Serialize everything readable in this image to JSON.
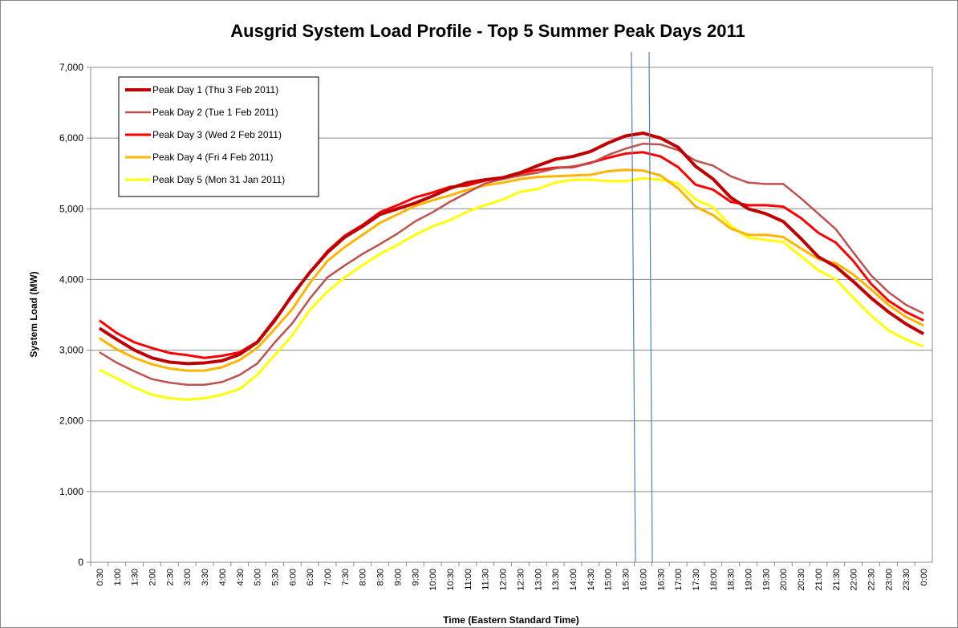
{
  "chart_data": {
    "type": "line",
    "title": "Ausgrid System Load Profile - Top 5 Summer Peak Days 2011",
    "x_label": "Time (Eastern Standard Time)",
    "y_label": "System Load (MW)",
    "categories": [
      "0:30",
      "1:00",
      "1:30",
      "2:00",
      "2:30",
      "3:00",
      "3:30",
      "4:00",
      "4:30",
      "5:00",
      "5:30",
      "6:00",
      "6:30",
      "7:00",
      "7:30",
      "8:00",
      "8:30",
      "9:00",
      "9:30",
      "10:00",
      "10:30",
      "11:00",
      "11:30",
      "12:00",
      "12:30",
      "13:00",
      "13:30",
      "14:00",
      "14:30",
      "15:00",
      "15:30",
      "16:00",
      "16:30",
      "17:00",
      "17:30",
      "18:00",
      "18:30",
      "19:00",
      "19:30",
      "20:00",
      "20:30",
      "21:00",
      "21:30",
      "22:00",
      "22:30",
      "23:00",
      "23:30",
      "0:00"
    ],
    "series": [
      {
        "name": "Peak Day 1 (Thu 3 Feb 2011)",
        "color": "#c00000",
        "values": [
          3310,
          3150,
          3000,
          2890,
          2830,
          2810,
          2820,
          2850,
          2940,
          3110,
          3420,
          3780,
          4100,
          4380,
          4600,
          4750,
          4920,
          5000,
          5080,
          5180,
          5290,
          5370,
          5410,
          5440,
          5510,
          5610,
          5700,
          5740,
          5810,
          5930,
          6030,
          6070,
          6000,
          5870,
          5600,
          5420,
          5160,
          5000,
          4930,
          4820,
          4580,
          4320,
          4180,
          3970,
          3740,
          3540,
          3370,
          3230
        ]
      },
      {
        "name": "Peak Day 2 (Tue 1 Feb 2011)",
        "color": "#c0504d",
        "values": [
          2970,
          2820,
          2700,
          2590,
          2540,
          2510,
          2510,
          2550,
          2650,
          2810,
          3110,
          3380,
          3730,
          4030,
          4200,
          4360,
          4500,
          4650,
          4820,
          4950,
          5100,
          5230,
          5360,
          5420,
          5470,
          5510,
          5570,
          5600,
          5640,
          5760,
          5850,
          5920,
          5910,
          5830,
          5680,
          5610,
          5460,
          5370,
          5350,
          5350,
          5150,
          4930,
          4710,
          4380,
          4060,
          3820,
          3640,
          3520
        ]
      },
      {
        "name": "Peak Day 3 (Wed 2 Feb 2011)",
        "color": "#ff0000",
        "values": [
          3420,
          3240,
          3110,
          3030,
          2960,
          2930,
          2890,
          2920,
          2970,
          3120,
          3440,
          3760,
          4100,
          4400,
          4620,
          4770,
          4950,
          5050,
          5160,
          5230,
          5310,
          5330,
          5400,
          5440,
          5500,
          5550,
          5580,
          5590,
          5650,
          5720,
          5780,
          5800,
          5740,
          5590,
          5340,
          5270,
          5100,
          5050,
          5050,
          5030,
          4870,
          4660,
          4520,
          4260,
          3940,
          3700,
          3540,
          3420
        ]
      },
      {
        "name": "Peak Day 4 (Fri 4 Feb 2011)",
        "color": "#ffb400",
        "values": [
          3170,
          3010,
          2890,
          2800,
          2740,
          2710,
          2710,
          2760,
          2860,
          3030,
          3300,
          3580,
          3950,
          4260,
          4460,
          4630,
          4800,
          4920,
          5040,
          5120,
          5190,
          5270,
          5330,
          5370,
          5420,
          5450,
          5460,
          5470,
          5480,
          5530,
          5550,
          5540,
          5470,
          5290,
          5030,
          4910,
          4720,
          4630,
          4630,
          4600,
          4440,
          4290,
          4230,
          4070,
          3860,
          3640,
          3470,
          3350
        ]
      },
      {
        "name": "Peak Day 5 (Mon 31 Jan 2011)",
        "color": "#ffff00",
        "values": [
          2720,
          2600,
          2470,
          2370,
          2320,
          2300,
          2320,
          2370,
          2450,
          2650,
          2930,
          3210,
          3570,
          3830,
          4030,
          4200,
          4360,
          4490,
          4630,
          4750,
          4840,
          4960,
          5050,
          5130,
          5240,
          5280,
          5370,
          5410,
          5410,
          5390,
          5390,
          5430,
          5410,
          5360,
          5130,
          5020,
          4760,
          4590,
          4560,
          4530,
          4330,
          4130,
          4000,
          3740,
          3490,
          3280,
          3150,
          3050
        ]
      }
    ],
    "ylim": [
      0,
      7000
    ],
    "yticks": [
      0,
      {
        "value": 1000,
        "label": "1,000"
      },
      {
        "value": 2000,
        "label": "2,000"
      },
      {
        "value": 3000,
        "label": "3,000"
      },
      {
        "value": 4000,
        "label": "4,000"
      },
      {
        "value": 5000,
        "label": "5,000"
      },
      {
        "value": 6000,
        "label": "6,000"
      },
      {
        "value": 7000,
        "label": "7,000"
      }
    ],
    "grid": true,
    "legend": "upper-left"
  }
}
